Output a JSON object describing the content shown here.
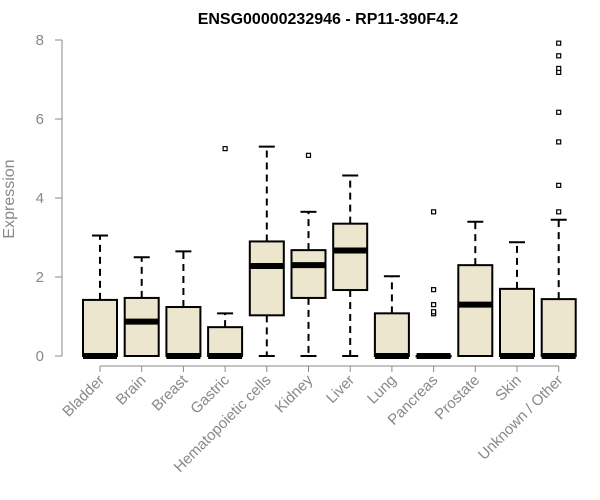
{
  "chart_data": {
    "type": "box",
    "title": "ENSG00000232946 - RP11-390F4.2",
    "xlabel": "",
    "ylabel": "Expression",
    "ylim": [
      0,
      8
    ],
    "yticks": [
      0,
      2,
      4,
      6,
      8
    ],
    "box_fill": "#EDE6CE",
    "box_stroke": "#000000",
    "axis_color": "#888888",
    "categories": [
      "Bladder",
      "Brain",
      "Breast",
      "Gastric",
      "Hematopoietic cells",
      "Kidney",
      "Liver",
      "Lung",
      "Pancreas",
      "Prostate",
      "Skin",
      "Unknown / Other"
    ],
    "boxes": [
      {
        "min": 0,
        "q1": 0,
        "median": 0,
        "q3": 1.42,
        "max": 3.05,
        "outliers": []
      },
      {
        "min": 0,
        "q1": 0,
        "median": 0.87,
        "q3": 1.47,
        "max": 2.5,
        "outliers": []
      },
      {
        "min": 0,
        "q1": 0,
        "median": 0,
        "q3": 1.24,
        "max": 2.65,
        "outliers": []
      },
      {
        "min": 0,
        "q1": 0,
        "median": 0,
        "q3": 0.73,
        "max": 1.08,
        "outliers": [
          5.25
        ]
      },
      {
        "min": 0,
        "q1": 1.03,
        "median": 2.28,
        "q3": 2.9,
        "max": 5.3,
        "outliers": []
      },
      {
        "min": 0,
        "q1": 1.47,
        "median": 2.3,
        "q3": 2.68,
        "max": 3.65,
        "outliers": [
          5.08
        ]
      },
      {
        "min": 0,
        "q1": 1.67,
        "median": 2.67,
        "q3": 3.35,
        "max": 4.57,
        "outliers": []
      },
      {
        "min": 0,
        "q1": 0,
        "median": 0,
        "q3": 1.08,
        "max": 2.02,
        "outliers": []
      },
      {
        "min": 0,
        "q1": 0,
        "median": 0,
        "q3": 0,
        "max": 0,
        "outliers": [
          1.07,
          1.12,
          1.3,
          1.68,
          3.65
        ]
      },
      {
        "min": 0,
        "q1": 0,
        "median": 1.3,
        "q3": 2.3,
        "max": 3.4,
        "outliers": []
      },
      {
        "min": 0,
        "q1": 0,
        "median": 0,
        "q3": 1.7,
        "max": 2.88,
        "outliers": []
      },
      {
        "min": 0,
        "q1": 0,
        "median": 0,
        "q3": 1.44,
        "max": 3.45,
        "outliers": [
          3.65,
          4.32,
          5.42,
          6.17,
          7.18,
          7.28,
          7.6,
          7.92
        ]
      }
    ]
  }
}
